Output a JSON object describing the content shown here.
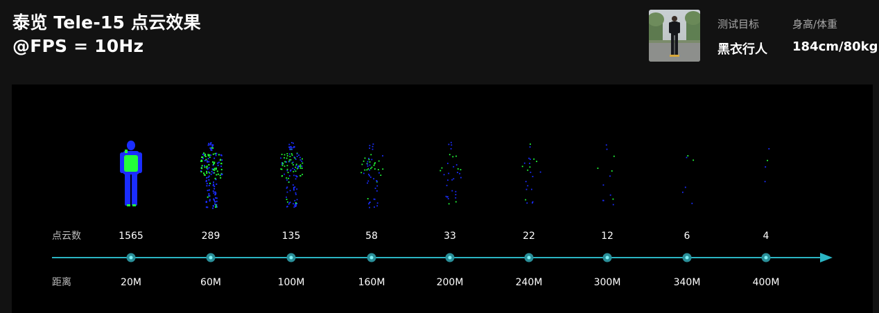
{
  "header": {
    "title_line1": "泰览 Tele-15 点云效果",
    "title_line2": "@FPS = 10Hz"
  },
  "subject": {
    "target_label": "测试目标",
    "target_value": "黑衣行人",
    "size_label": "身高/体重",
    "size_value": "184cm/80kg"
  },
  "chart_data": {
    "type": "scatter",
    "title": "",
    "row_labels": {
      "points": "点云数",
      "distance": "距离"
    },
    "categories": [
      "20M",
      "60M",
      "100M",
      "160M",
      "200M",
      "240M",
      "300M",
      "340M",
      "400M"
    ],
    "point_counts": [
      1565,
      289,
      135,
      58,
      33,
      22,
      12,
      6,
      4
    ],
    "series": [
      {
        "name": "",
        "x": [
          "20M",
          "60M",
          "100M",
          "160M",
          "200M",
          "240M",
          "300M",
          "340M",
          "400M"
        ],
        "values": [
          1565,
          289,
          135,
          58,
          33,
          22,
          12,
          6,
          4
        ]
      }
    ],
    "colors": {
      "axis": "#2bb5c4",
      "marker_fill": "#2a8f99",
      "points_near": "#23ff3a",
      "points_far": "#1a2dff"
    }
  }
}
